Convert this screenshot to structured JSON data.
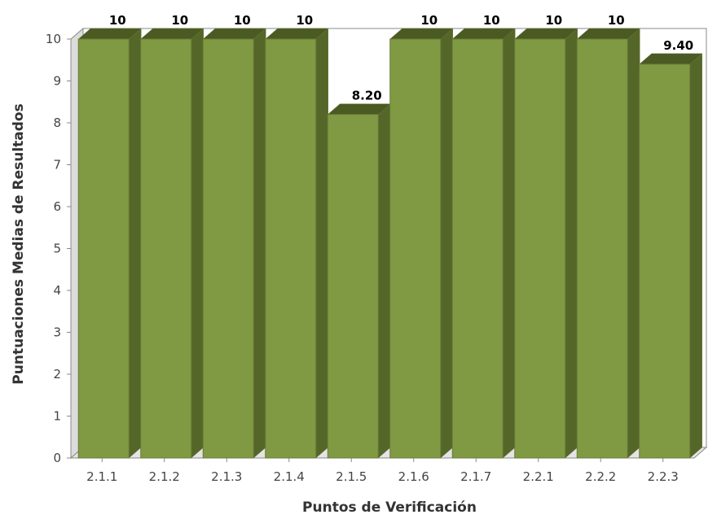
{
  "chart_data": {
    "type": "bar",
    "style": "3d",
    "title": "",
    "xlabel": "Puntos de Verificación",
    "ylabel": "Puntuaciones Medias de Resultados",
    "categories": [
      "2.1.1",
      "2.1.2",
      "2.1.3",
      "2.1.4",
      "2.1.5",
      "2.1.6",
      "2.1.7",
      "2.2.1",
      "2.2.2",
      "2.2.3"
    ],
    "values": [
      10,
      10,
      10,
      10,
      8.2,
      10,
      10,
      10,
      10,
      9.4
    ],
    "data_labels": [
      "10",
      "10",
      "10",
      "10",
      "8.20",
      "10",
      "10",
      "10",
      "10",
      "9.40"
    ],
    "ylim": [
      0,
      10
    ],
    "yticks": [
      0,
      1,
      2,
      3,
      4,
      5,
      6,
      7,
      8,
      9,
      10
    ],
    "grid": false,
    "legend": "none",
    "colors": {
      "bar_front": "#7f9a42",
      "bar_side": "#556629",
      "bar_top": "#4a5a22",
      "bar_outline": "#6b7a3a",
      "plot_wall": "#ffffff",
      "plot_left_wall": "#dcdcdc",
      "axis_line": "#888888"
    }
  }
}
